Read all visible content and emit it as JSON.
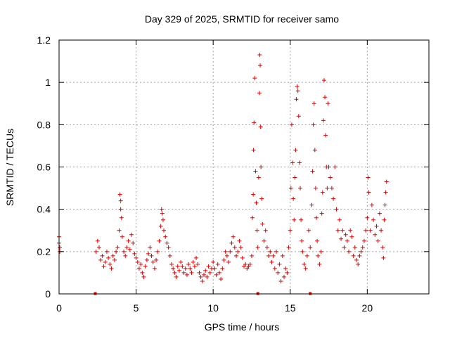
{
  "chart_data": {
    "type": "scatter",
    "title": "Day 329 of 2025, SRMTID for receiver samo",
    "xlabel": "GPS time / hours",
    "ylabel": "SRMTID / TECUs",
    "xlim": [
      0,
      24
    ],
    "ylim": [
      0,
      1.2
    ],
    "xticks": [
      0,
      5,
      10,
      15,
      20
    ],
    "xtick_labels": [
      "0",
      "5",
      "10",
      "15",
      "20"
    ],
    "yticks": [
      0,
      0.2,
      0.4,
      0.6,
      0.8,
      1.0,
      1.2
    ],
    "ytick_labels": [
      "0",
      "0.2",
      "0.4",
      "0.6",
      "0.8",
      "1",
      "1.2"
    ],
    "grid": true,
    "marker": "plus",
    "color": "#dd0000",
    "gap_markers_x": [
      2.35,
      12.9,
      16.3
    ],
    "series": [
      {
        "name": "SRMTID",
        "points": [
          [
            0.0,
            0.27
          ],
          [
            0.0,
            0.24
          ],
          [
            0.05,
            0.22
          ],
          [
            0.05,
            0.2
          ],
          [
            2.4,
            0.2
          ],
          [
            2.5,
            0.25
          ],
          [
            2.6,
            0.22
          ],
          [
            2.7,
            0.16
          ],
          [
            2.8,
            0.18
          ],
          [
            2.9,
            0.13
          ],
          [
            3.0,
            0.15
          ],
          [
            3.1,
            0.2
          ],
          [
            3.2,
            0.17
          ],
          [
            3.3,
            0.14
          ],
          [
            3.4,
            0.12
          ],
          [
            3.5,
            0.18
          ],
          [
            3.6,
            0.16
          ],
          [
            3.7,
            0.2
          ],
          [
            3.8,
            0.22
          ],
          [
            3.9,
            0.3
          ],
          [
            3.95,
            0.47
          ],
          [
            4.0,
            0.44
          ],
          [
            4.0,
            0.4
          ],
          [
            4.05,
            0.36
          ],
          [
            4.1,
            0.27
          ],
          [
            4.2,
            0.2
          ],
          [
            4.3,
            0.18
          ],
          [
            4.4,
            0.22
          ],
          [
            4.5,
            0.25
          ],
          [
            4.6,
            0.21
          ],
          [
            4.7,
            0.28
          ],
          [
            4.8,
            0.24
          ],
          [
            4.9,
            0.19
          ],
          [
            5.0,
            0.17
          ],
          [
            5.1,
            0.15
          ],
          [
            5.2,
            0.12
          ],
          [
            5.3,
            0.14
          ],
          [
            5.4,
            0.1
          ],
          [
            5.5,
            0.08
          ],
          [
            5.6,
            0.13
          ],
          [
            5.7,
            0.16
          ],
          [
            5.8,
            0.19
          ],
          [
            5.9,
            0.22
          ],
          [
            6.0,
            0.18
          ],
          [
            6.1,
            0.15
          ],
          [
            6.2,
            0.12
          ],
          [
            6.3,
            0.16
          ],
          [
            6.4,
            0.2
          ],
          [
            6.5,
            0.25
          ],
          [
            6.6,
            0.32
          ],
          [
            6.65,
            0.4
          ],
          [
            6.7,
            0.38
          ],
          [
            6.75,
            0.35
          ],
          [
            6.8,
            0.3
          ],
          [
            6.9,
            0.27
          ],
          [
            7.0,
            0.24
          ],
          [
            7.1,
            0.22
          ],
          [
            7.2,
            0.18
          ],
          [
            7.3,
            0.14
          ],
          [
            7.4,
            0.12
          ],
          [
            7.5,
            0.1
          ],
          [
            7.6,
            0.08
          ],
          [
            7.7,
            0.13
          ],
          [
            7.8,
            0.11
          ],
          [
            7.9,
            0.15
          ],
          [
            8.0,
            0.13
          ],
          [
            8.1,
            0.1
          ],
          [
            8.2,
            0.12
          ],
          [
            8.3,
            0.09
          ],
          [
            8.4,
            0.14
          ],
          [
            8.5,
            0.12
          ],
          [
            8.6,
            0.1
          ],
          [
            8.7,
            0.15
          ],
          [
            8.8,
            0.13
          ],
          [
            8.9,
            0.17
          ],
          [
            9.0,
            0.14
          ],
          [
            9.1,
            0.1
          ],
          [
            9.2,
            0.08
          ],
          [
            9.3,
            0.06
          ],
          [
            9.4,
            0.09
          ],
          [
            9.5,
            0.11
          ],
          [
            9.6,
            0.08
          ],
          [
            9.7,
            0.13
          ],
          [
            9.8,
            0.1
          ],
          [
            9.9,
            0.12
          ],
          [
            10.0,
            0.15
          ],
          [
            10.1,
            0.12
          ],
          [
            10.2,
            0.09
          ],
          [
            10.3,
            0.14
          ],
          [
            10.4,
            0.1
          ],
          [
            10.5,
            0.07
          ],
          [
            10.6,
            0.12
          ],
          [
            10.7,
            0.16
          ],
          [
            10.8,
            0.2
          ],
          [
            10.9,
            0.18
          ],
          [
            11.0,
            0.15
          ],
          [
            11.1,
            0.2
          ],
          [
            11.2,
            0.24
          ],
          [
            11.3,
            0.27
          ],
          [
            11.4,
            0.22
          ],
          [
            11.5,
            0.18
          ],
          [
            11.6,
            0.2
          ],
          [
            11.7,
            0.25
          ],
          [
            11.8,
            0.22
          ],
          [
            11.9,
            0.17
          ],
          [
            12.0,
            0.13
          ],
          [
            12.1,
            0.14
          ],
          [
            12.2,
            0.12
          ],
          [
            12.3,
            0.13
          ],
          [
            12.4,
            0.14
          ],
          [
            12.5,
            0.18
          ],
          [
            12.55,
            0.36
          ],
          [
            12.6,
            0.47
          ],
          [
            12.62,
            0.68
          ],
          [
            12.65,
            0.81
          ],
          [
            12.7,
            1.02
          ],
          [
            12.75,
            0.58
          ],
          [
            12.8,
            0.43
          ],
          [
            12.85,
            0.3
          ],
          [
            12.9,
            0.22
          ],
          [
            12.95,
            0.55
          ],
          [
            13.0,
            0.95
          ],
          [
            13.02,
            1.13
          ],
          [
            13.05,
            1.08
          ],
          [
            13.08,
            0.79
          ],
          [
            13.1,
            0.6
          ],
          [
            13.15,
            0.45
          ],
          [
            13.2,
            0.33
          ],
          [
            13.3,
            0.25
          ],
          [
            13.4,
            0.3
          ],
          [
            13.5,
            0.22
          ],
          [
            13.6,
            0.18
          ],
          [
            13.7,
            0.2
          ],
          [
            13.8,
            0.15
          ],
          [
            13.9,
            0.18
          ],
          [
            14.0,
            0.12
          ],
          [
            14.1,
            0.2
          ],
          [
            14.2,
            0.1
          ],
          [
            14.3,
            0.14
          ],
          [
            14.4,
            0.06
          ],
          [
            14.5,
            0.18
          ],
          [
            14.6,
            0.08
          ],
          [
            14.7,
            0.12
          ],
          [
            14.8,
            0.1
          ],
          [
            14.9,
            0.22
          ],
          [
            15.0,
            0.3
          ],
          [
            15.05,
            0.5
          ],
          [
            15.1,
            0.8
          ],
          [
            15.15,
            0.62
          ],
          [
            15.2,
            0.45
          ],
          [
            15.25,
            0.35
          ],
          [
            15.3,
            0.55
          ],
          [
            15.35,
            0.68
          ],
          [
            15.4,
            0.92
          ],
          [
            15.45,
            0.98
          ],
          [
            15.5,
            0.96
          ],
          [
            15.55,
            0.84
          ],
          [
            15.6,
            0.62
          ],
          [
            15.65,
            0.5
          ],
          [
            15.7,
            0.35
          ],
          [
            15.75,
            0.25
          ],
          [
            15.8,
            0.2
          ],
          [
            15.9,
            0.14
          ],
          [
            16.0,
            0.12
          ],
          [
            16.1,
            0.18
          ],
          [
            16.2,
            0.3
          ],
          [
            16.3,
            0.22
          ],
          [
            16.4,
            0.42
          ],
          [
            16.45,
            0.58
          ],
          [
            16.5,
            0.8
          ],
          [
            16.55,
            0.9
          ],
          [
            16.6,
            0.68
          ],
          [
            16.65,
            0.5
          ],
          [
            16.7,
            0.36
          ],
          [
            16.75,
            0.25
          ],
          [
            16.8,
            0.18
          ],
          [
            16.9,
            0.14
          ],
          [
            17.0,
            0.2
          ],
          [
            17.05,
            0.38
          ],
          [
            17.1,
            0.48
          ],
          [
            17.15,
            0.82
          ],
          [
            17.2,
            1.01
          ],
          [
            17.25,
            0.93
          ],
          [
            17.3,
            0.75
          ],
          [
            17.35,
            0.6
          ],
          [
            17.4,
            0.5
          ],
          [
            17.45,
            0.9
          ],
          [
            17.5,
            0.6
          ],
          [
            17.6,
            0.55
          ],
          [
            17.7,
            0.5
          ],
          [
            17.8,
            0.45
          ],
          [
            17.9,
            0.6
          ],
          [
            18.0,
            0.4
          ],
          [
            18.1,
            0.3
          ],
          [
            18.2,
            0.35
          ],
          [
            18.3,
            0.26
          ],
          [
            18.4,
            0.3
          ],
          [
            18.5,
            0.22
          ],
          [
            18.6,
            0.28
          ],
          [
            18.7,
            0.25
          ],
          [
            18.8,
            0.2
          ],
          [
            18.9,
            0.3
          ],
          [
            19.0,
            0.27
          ],
          [
            19.1,
            0.18
          ],
          [
            19.2,
            0.22
          ],
          [
            19.3,
            0.16
          ],
          [
            19.4,
            0.14
          ],
          [
            19.5,
            0.18
          ],
          [
            19.6,
            0.2
          ],
          [
            19.7,
            0.22
          ],
          [
            19.8,
            0.25
          ],
          [
            19.9,
            0.3
          ],
          [
            20.0,
            0.36
          ],
          [
            20.05,
            0.55
          ],
          [
            20.1,
            0.48
          ],
          [
            20.2,
            0.3
          ],
          [
            20.3,
            0.42
          ],
          [
            20.4,
            0.35
          ],
          [
            20.5,
            0.28
          ],
          [
            20.6,
            0.32
          ],
          [
            20.7,
            0.25
          ],
          [
            20.8,
            0.38
          ],
          [
            20.9,
            0.3
          ],
          [
            21.0,
            0.22
          ],
          [
            21.05,
            0.17
          ],
          [
            21.1,
            0.35
          ],
          [
            21.15,
            0.42
          ],
          [
            21.2,
            0.48
          ],
          [
            21.25,
            0.53
          ]
        ]
      }
    ]
  }
}
